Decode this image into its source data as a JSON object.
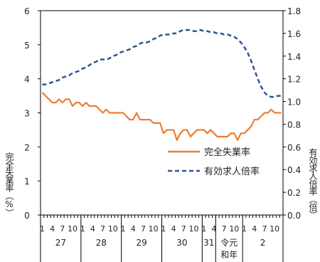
{
  "chart_data": {
    "type": "line",
    "title": "",
    "xlabel": "",
    "y_left": {
      "label": "完全失業率（%）",
      "min": 0,
      "max": 6,
      "ticks": [
        "0",
        "1",
        "2",
        "3",
        "4",
        "5",
        "6"
      ]
    },
    "y_right": {
      "label": "有効求人倍率（倍）",
      "min": 0,
      "max": 1.8,
      "ticks": [
        "0.0",
        "0.2",
        "0.4",
        "0.6",
        "0.8",
        "1.0",
        "1.2",
        "1.4",
        "1.6",
        "1.8"
      ]
    },
    "month_ticks": [
      "1",
      "4",
      "7",
      "10"
    ],
    "year_groups": [
      {
        "label": "27",
        "months": 12
      },
      {
        "label": "28",
        "months": 12
      },
      {
        "label": "29",
        "months": 12
      },
      {
        "label": "30",
        "months": 12
      },
      {
        "label": "31",
        "months": 4
      },
      {
        "label": "令元和年",
        "months": 8
      },
      {
        "label": "2",
        "months": 12
      }
    ],
    "legend": {
      "position": "right",
      "entries": [
        "完全失業率",
        "有効求人倍率"
      ]
    },
    "grid": false,
    "series": [
      {
        "name": "完全失業率",
        "axis": "left",
        "color": "#ed7d31",
        "style": "solid",
        "values": [
          3.6,
          3.5,
          3.4,
          3.3,
          3.3,
          3.4,
          3.3,
          3.4,
          3.4,
          3.2,
          3.3,
          3.3,
          3.2,
          3.3,
          3.2,
          3.2,
          3.2,
          3.1,
          3.0,
          3.1,
          3.0,
          3.0,
          3.0,
          3.0,
          3.0,
          2.9,
          2.8,
          2.8,
          3.0,
          2.8,
          2.8,
          2.8,
          2.8,
          2.7,
          2.7,
          2.7,
          2.4,
          2.5,
          2.5,
          2.5,
          2.2,
          2.4,
          2.5,
          2.5,
          2.3,
          2.4,
          2.5,
          2.5,
          2.5,
          2.4,
          2.5,
          2.4,
          2.3,
          2.3,
          2.3,
          2.3,
          2.4,
          2.4,
          2.2,
          2.4,
          2.4,
          2.5,
          2.6,
          2.8,
          2.8,
          2.9,
          3.0,
          3.0,
          3.1,
          3.0,
          3.0,
          3.0
        ]
      },
      {
        "name": "有効求人倍率",
        "axis": "right",
        "color": "#2e5597",
        "style": "dashed",
        "values": [
          1.15,
          1.15,
          1.16,
          1.17,
          1.18,
          1.19,
          1.21,
          1.22,
          1.23,
          1.25,
          1.26,
          1.27,
          1.29,
          1.3,
          1.32,
          1.34,
          1.35,
          1.37,
          1.37,
          1.37,
          1.38,
          1.4,
          1.41,
          1.43,
          1.44,
          1.45,
          1.46,
          1.48,
          1.49,
          1.51,
          1.52,
          1.52,
          1.53,
          1.55,
          1.56,
          1.58,
          1.59,
          1.59,
          1.59,
          1.6,
          1.6,
          1.62,
          1.63,
          1.63,
          1.63,
          1.62,
          1.62,
          1.63,
          1.62,
          1.62,
          1.61,
          1.61,
          1.6,
          1.6,
          1.59,
          1.59,
          1.58,
          1.57,
          1.55,
          1.52,
          1.48,
          1.43,
          1.36,
          1.28,
          1.2,
          1.13,
          1.08,
          1.05,
          1.04,
          1.04,
          1.05,
          1.05
        ]
      }
    ]
  }
}
